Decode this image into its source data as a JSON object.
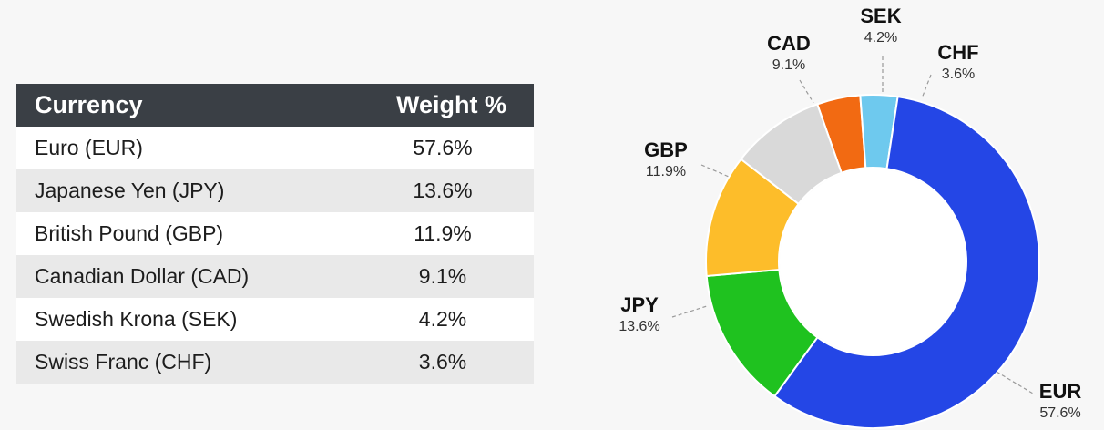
{
  "table": {
    "headers": {
      "currency": "Currency",
      "weight": "Weight %"
    },
    "rows": [
      {
        "name": "Euro (EUR)",
        "weight": "57.6%"
      },
      {
        "name": "Japanese Yen (JPY)",
        "weight": "13.6%"
      },
      {
        "name": "British Pound (GBP)",
        "weight": "11.9%"
      },
      {
        "name": "Canadian Dollar (CAD)",
        "weight": "9.1%"
      },
      {
        "name": "Swedish Krona (SEK)",
        "weight": "4.2%"
      },
      {
        "name": "Swiss Franc (CHF)",
        "weight": "3.6%"
      }
    ]
  },
  "chart_data": {
    "type": "pie",
    "variant": "donut",
    "slices": [
      {
        "label": "EUR",
        "value": 57.6,
        "value_label": "57.6%",
        "color": "#2446e6"
      },
      {
        "label": "JPY",
        "value": 13.6,
        "value_label": "13.6%",
        "color": "#1fc21f"
      },
      {
        "label": "GBP",
        "value": 11.9,
        "value_label": "11.9%",
        "color": "#fdbd2a"
      },
      {
        "label": "CAD",
        "value": 9.1,
        "value_label": "9.1%",
        "color": "#d9d9d9"
      },
      {
        "label": "SEK",
        "value": 4.2,
        "value_label": "4.2%",
        "color": "#f26a12"
      },
      {
        "label": "CHF",
        "value": 3.6,
        "value_label": "3.6%",
        "color": "#6ec9ee"
      }
    ]
  }
}
